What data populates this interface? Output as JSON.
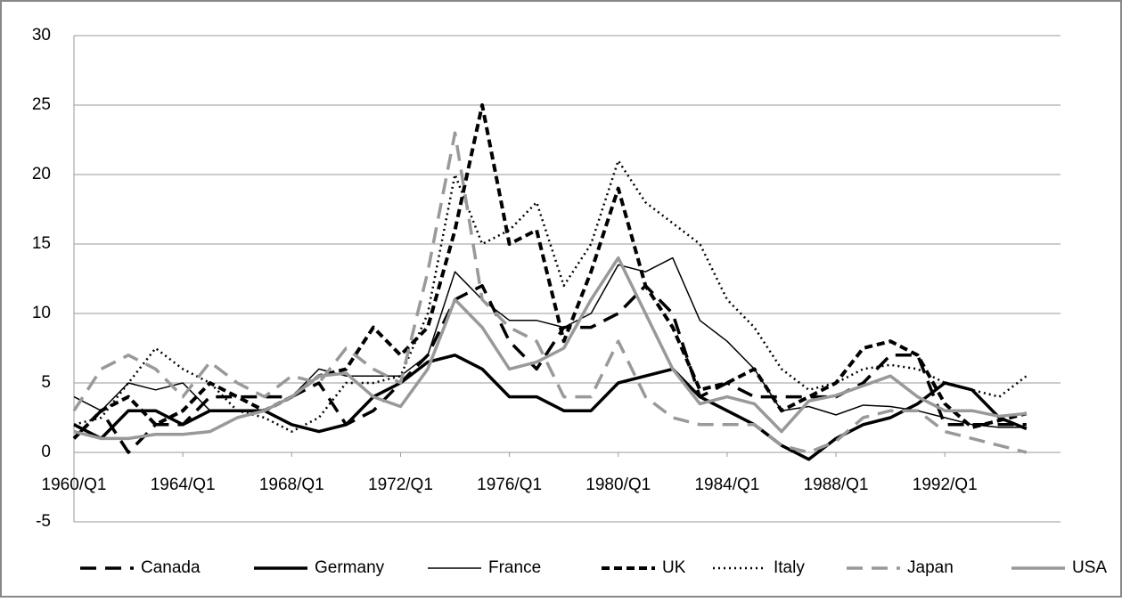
{
  "chart_data": {
    "type": "line",
    "x": [
      1960,
      1961,
      1962,
      1963,
      1964,
      1965,
      1966,
      1967,
      1968,
      1969,
      1970,
      1971,
      1972,
      1973,
      1974,
      1975,
      1976,
      1977,
      1978,
      1979,
      1980,
      1981,
      1982,
      1983,
      1984,
      1985,
      1986,
      1987,
      1988,
      1989,
      1990,
      1991,
      1992,
      1993,
      1994,
      1995
    ],
    "xlim": [
      1960,
      1996.25
    ],
    "xticks": [
      {
        "value": 1960,
        "label": "1960/Q1"
      },
      {
        "value": 1964,
        "label": "1964/Q1"
      },
      {
        "value": 1968,
        "label": "1968/Q1"
      },
      {
        "value": 1972,
        "label": "1972/Q1"
      },
      {
        "value": 1976,
        "label": "1976/Q1"
      },
      {
        "value": 1980,
        "label": "1980/Q1"
      },
      {
        "value": 1984,
        "label": "1984/Q1"
      },
      {
        "value": 1988,
        "label": "1988/Q1"
      },
      {
        "value": 1992,
        "label": "1992/Q1"
      }
    ],
    "ylim": [
      -5,
      30
    ],
    "yticks": [
      -5,
      0,
      5,
      10,
      15,
      20,
      25,
      30
    ],
    "grid": true,
    "legend": "bottom",
    "series": [
      {
        "name": "Canada",
        "color": "#000000",
        "style": "long-dash",
        "values": [
          1,
          3,
          0,
          2,
          2,
          4,
          4,
          4,
          4,
          5,
          2,
          3,
          5,
          7,
          11,
          12,
          8,
          6,
          9,
          9,
          10,
          12,
          10,
          4,
          5,
          4,
          4,
          4,
          4,
          5,
          7,
          7,
          2,
          2,
          2,
          2
        ]
      },
      {
        "name": "Germany",
        "color": "#000000",
        "style": "thick",
        "values": [
          2,
          1,
          3,
          3,
          2,
          3,
          3,
          3,
          2,
          1.5,
          2,
          4,
          5,
          6.5,
          7,
          6,
          4,
          4,
          3,
          3,
          5,
          5.5,
          6,
          4,
          3,
          2,
          0.5,
          -0.5,
          1,
          2,
          2.5,
          3.5,
          5,
          4.5,
          2.5,
          1.7
        ]
      },
      {
        "name": "France",
        "color": "#000000",
        "style": "thin",
        "values": [
          4,
          3,
          5,
          4.5,
          5,
          3,
          3,
          3,
          4,
          6,
          5.5,
          5.5,
          5.5,
          7,
          13,
          11,
          9.5,
          9.5,
          9,
          10,
          13.5,
          13,
          14,
          9.5,
          8,
          6,
          3,
          3.3,
          2.7,
          3.4,
          3.3,
          3,
          2.5,
          2,
          1.8,
          1.8
        ]
      },
      {
        "name": "UK",
        "color": "#000000",
        "style": "dash",
        "values": [
          1,
          3,
          4,
          2,
          3,
          5,
          4,
          3,
          4,
          5.5,
          6,
          9,
          7,
          9,
          16,
          25,
          15,
          16,
          8,
          13,
          19,
          12,
          9,
          4.5,
          5,
          6,
          3,
          4,
          5,
          7.5,
          8,
          7,
          3.5,
          1.8,
          2.3,
          2.8
        ]
      },
      {
        "name": "Italy",
        "color": "#000000",
        "style": "dot",
        "values": [
          2,
          2.5,
          5,
          7.5,
          6,
          5,
          3,
          2.5,
          1.5,
          2.5,
          5,
          5,
          5.5,
          10,
          20,
          15,
          16,
          18,
          12,
          15,
          21,
          18,
          16.5,
          15,
          11,
          9,
          6,
          4.5,
          5,
          6,
          6.3,
          6,
          5,
          4.5,
          4,
          5.5
        ]
      },
      {
        "name": "Japan",
        "color": "#999999",
        "style": "long-dash",
        "values": [
          3,
          6,
          7,
          6,
          4,
          6.5,
          5,
          4,
          5.5,
          5,
          7.5,
          6,
          5,
          13,
          23,
          11,
          9,
          8,
          4,
          4,
          8,
          4,
          2.5,
          2,
          2,
          2,
          0.5,
          0,
          0.8,
          2.5,
          3,
          3,
          1.5,
          1,
          0.5,
          0
        ]
      },
      {
        "name": "USA",
        "color": "#999999",
        "style": "thick",
        "values": [
          1.5,
          1,
          1,
          1.3,
          1.3,
          1.5,
          2.5,
          3,
          4,
          5.5,
          5.7,
          4,
          3.3,
          6,
          11,
          9,
          6,
          6.5,
          7.5,
          11,
          14,
          10,
          6,
          3.5,
          4,
          3.5,
          1.5,
          3.7,
          4.1,
          4.8,
          5.5,
          4,
          3,
          3,
          2.6,
          2.8
        ]
      }
    ]
  }
}
